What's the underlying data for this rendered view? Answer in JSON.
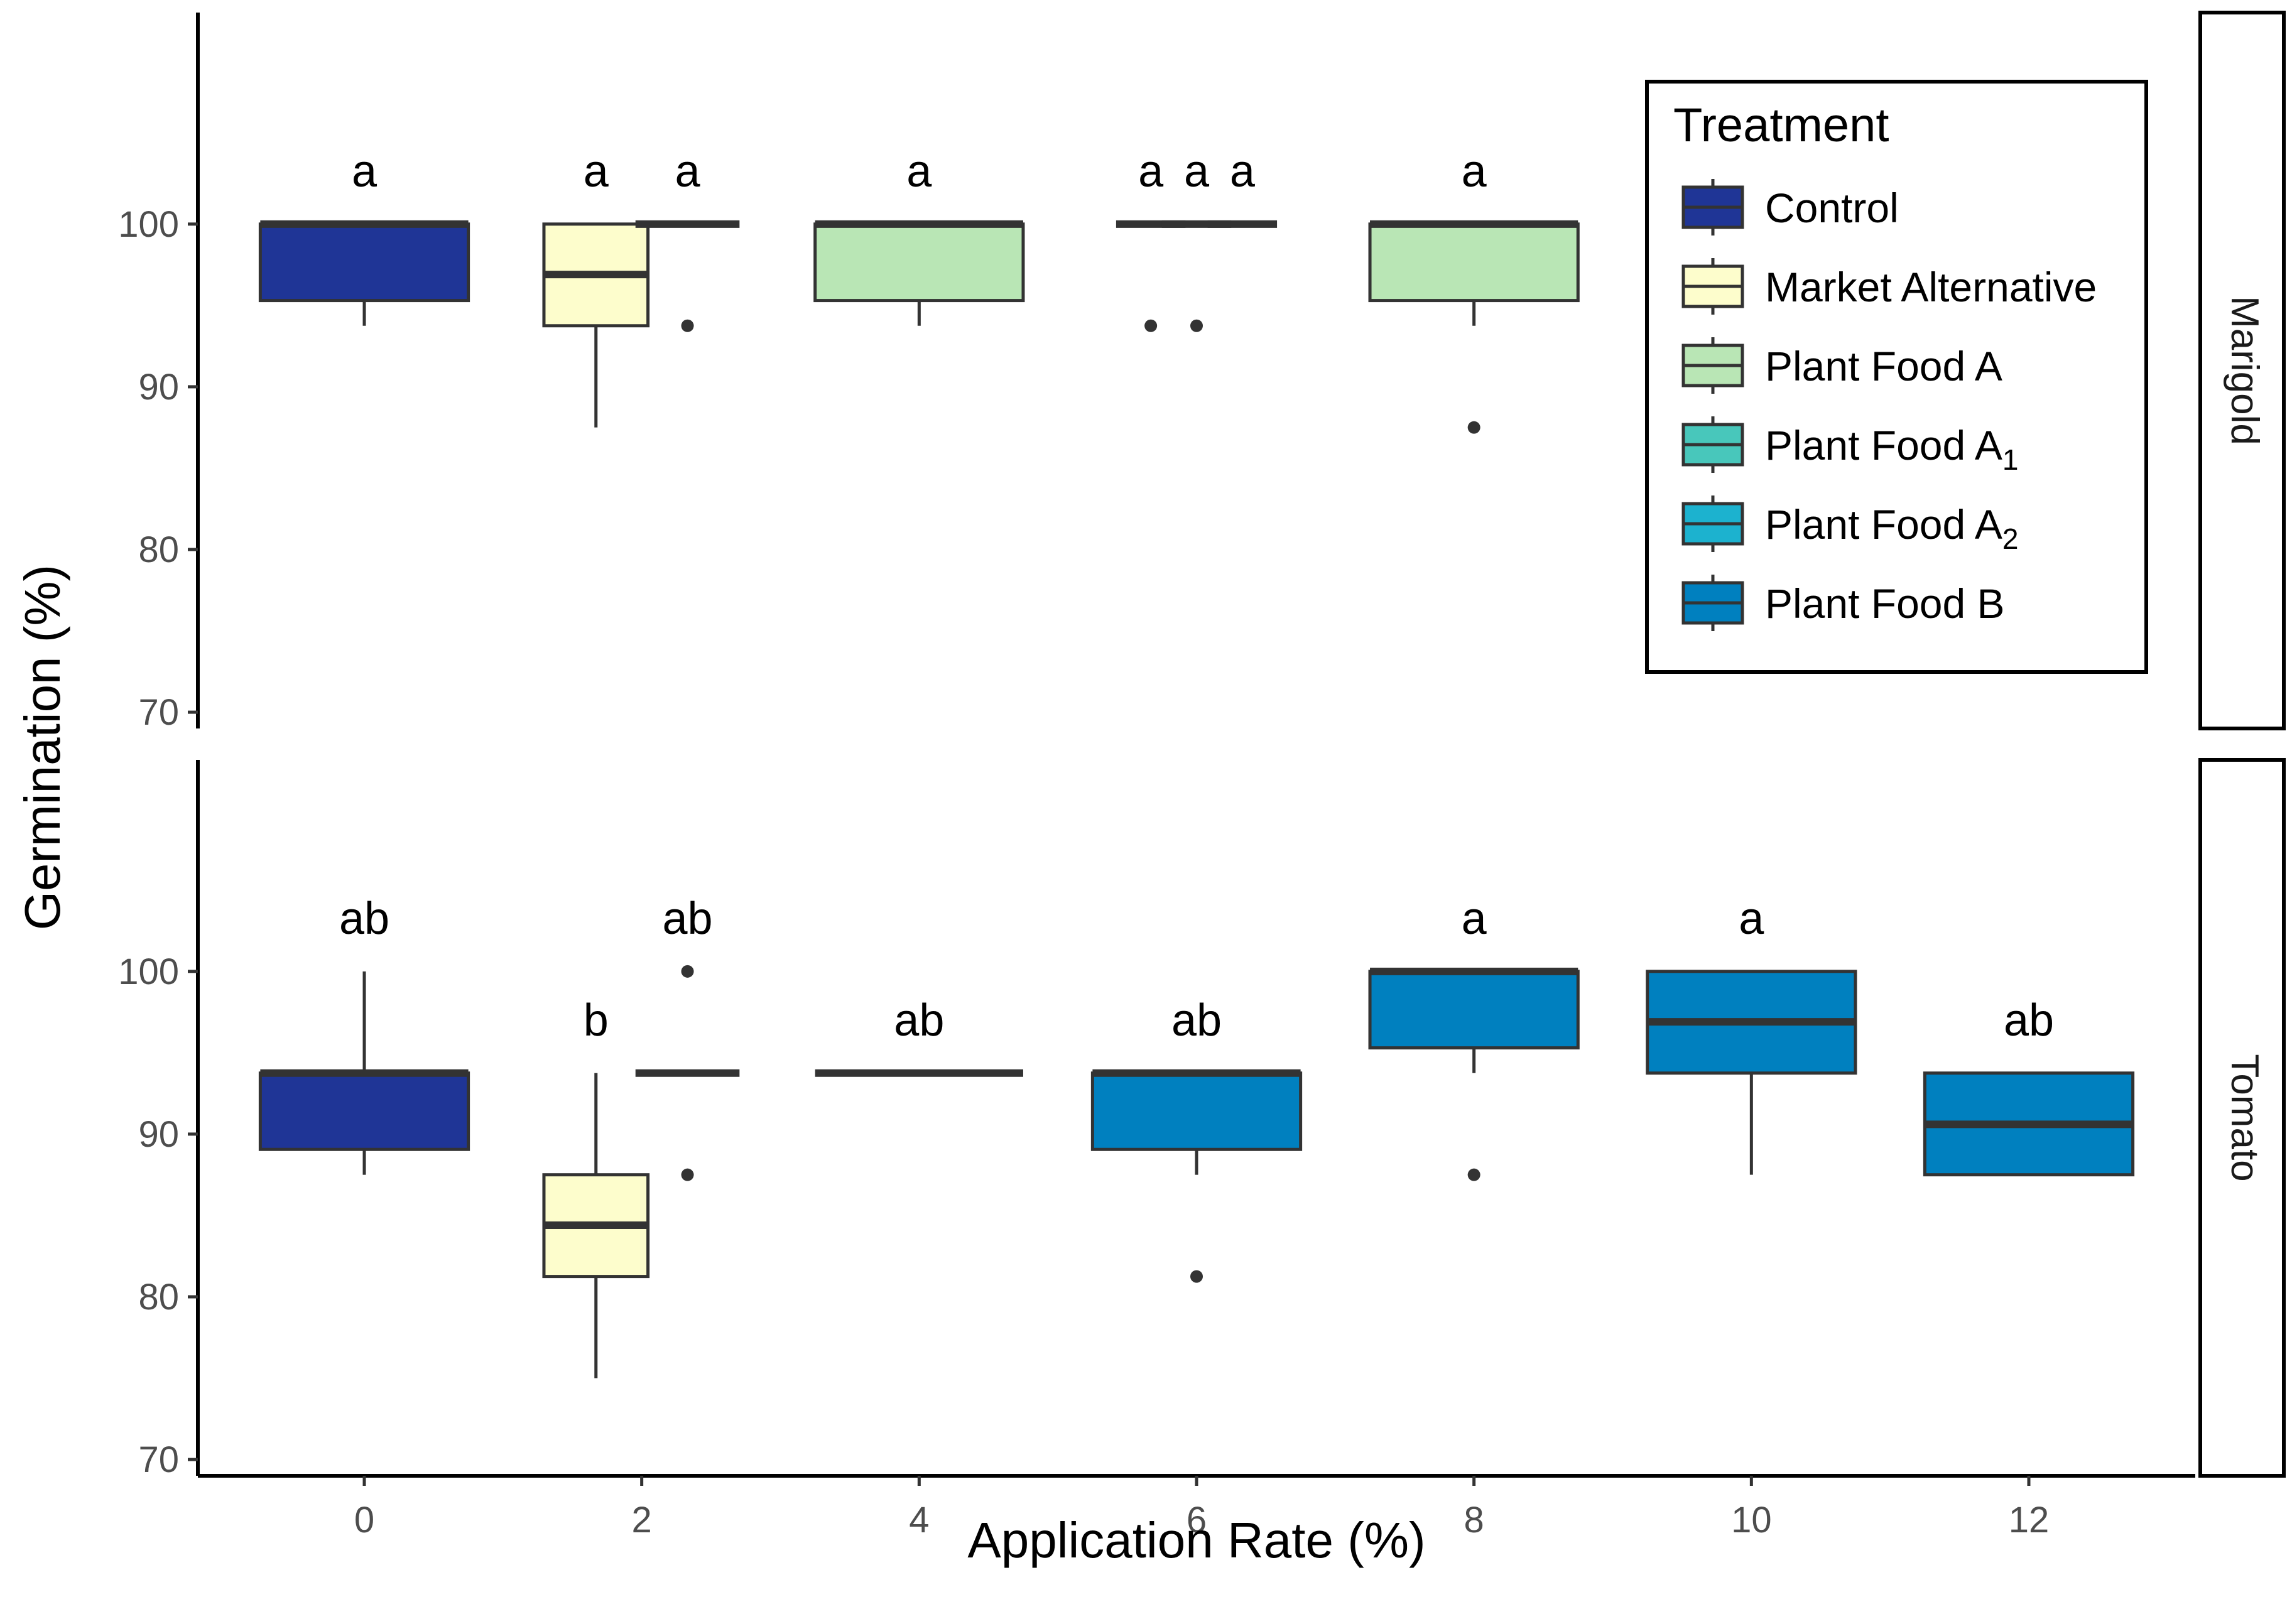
{
  "chart_data": {
    "type": "box",
    "xlabel": "Application Rate (%)",
    "ylabel": "Germination (%)",
    "x_ticks": [
      "0",
      "2",
      "4",
      "6",
      "8",
      "10",
      "12"
    ],
    "y_ticks": [
      "70",
      "80",
      "90",
      "100"
    ],
    "xlim": [
      -1.2,
      13.2
    ],
    "ylim": [
      69,
      113
    ],
    "legend": {
      "title": "Treatment",
      "position": "top-right",
      "entries": [
        {
          "label": "Control",
          "sub": "",
          "color": "#1f3596"
        },
        {
          "label": "Market Alternative",
          "sub": "",
          "color": "#fdfdcc"
        },
        {
          "label": "Plant Food A",
          "sub": "",
          "color": "#b9e6b5"
        },
        {
          "label": "Plant Food A",
          "sub": "1",
          "color": "#48c7bb"
        },
        {
          "label": "Plant Food A",
          "sub": "2",
          "color": "#1cb2cf"
        },
        {
          "label": "Plant Food B",
          "sub": "",
          "color": "#0080bf"
        }
      ]
    },
    "panels": [
      {
        "name": "Marigold",
        "boxes": [
          {
            "x": 0,
            "width": 1.5,
            "color": "#1f3596",
            "q1": 95.3,
            "median": 100,
            "q3": 100,
            "whisker_low": 93.75,
            "whisker_high": 100,
            "outliers": [],
            "letter": "a"
          },
          {
            "x": 1.67,
            "width": 0.75,
            "color": "#fdfdcc",
            "q1": 93.75,
            "median": 96.9,
            "q3": 100,
            "whisker_low": 87.5,
            "whisker_high": 100,
            "outliers": [],
            "letter": "a"
          },
          {
            "x": 2.33,
            "width": 0.75,
            "color": "#b9e6b5",
            "q1": 100,
            "median": 100,
            "q3": 100,
            "whisker_low": 100,
            "whisker_high": 100,
            "outliers": [
              93.75
            ],
            "letter": "a"
          },
          {
            "x": 4,
            "width": 1.5,
            "color": "#b9e6b5",
            "q1": 95.3,
            "median": 100,
            "q3": 100,
            "whisker_low": 93.75,
            "whisker_high": 100,
            "outliers": [],
            "letter": "a"
          },
          {
            "x": 5.67,
            "width": 0.5,
            "color": "#b9e6b5",
            "q1": 100,
            "median": 100,
            "q3": 100,
            "whisker_low": 100,
            "whisker_high": 100,
            "outliers": [
              93.75
            ],
            "letter": "a"
          },
          {
            "x": 6,
            "width": 0.5,
            "color": "#48c7bb",
            "q1": 100,
            "median": 100,
            "q3": 100,
            "whisker_low": 100,
            "whisker_high": 100,
            "outliers": [
              93.75
            ],
            "letter": "a"
          },
          {
            "x": 6.33,
            "width": 0.5,
            "color": "#1cb2cf",
            "q1": 100,
            "median": 100,
            "q3": 100,
            "whisker_low": 100,
            "whisker_high": 100,
            "outliers": [],
            "letter": "a"
          },
          {
            "x": 8,
            "width": 1.5,
            "color": "#b9e6b5",
            "q1": 95.3,
            "median": 100,
            "q3": 100,
            "whisker_low": 93.75,
            "whisker_high": 100,
            "outliers": [
              87.5
            ],
            "letter": "a"
          }
        ]
      },
      {
        "name": "Tomato",
        "boxes": [
          {
            "x": 0,
            "width": 1.5,
            "color": "#1f3596",
            "q1": 89.06,
            "median": 93.75,
            "q3": 93.75,
            "whisker_low": 87.5,
            "whisker_high": 100,
            "outliers": [],
            "letter": "ab"
          },
          {
            "x": 1.67,
            "width": 0.75,
            "color": "#fdfdcc",
            "q1": 81.25,
            "median": 84.4,
            "q3": 87.5,
            "whisker_low": 75,
            "whisker_high": 93.75,
            "outliers": [],
            "letter": "b"
          },
          {
            "x": 2.33,
            "width": 0.75,
            "color": "#b9e6b5",
            "q1": 93.75,
            "median": 93.75,
            "q3": 93.75,
            "whisker_low": 93.75,
            "whisker_high": 93.75,
            "outliers": [
              100,
              87.5
            ],
            "letter": "ab"
          },
          {
            "x": 4,
            "width": 1.5,
            "color": "#0080bf",
            "q1": 93.75,
            "median": 93.75,
            "q3": 93.75,
            "whisker_low": 93.75,
            "whisker_high": 93.75,
            "outliers": [],
            "letter": "ab"
          },
          {
            "x": 6,
            "width": 1.5,
            "color": "#0080bf",
            "q1": 89.06,
            "median": 93.75,
            "q3": 93.75,
            "whisker_low": 87.5,
            "whisker_high": 93.75,
            "outliers": [
              81.25
            ],
            "letter": "ab"
          },
          {
            "x": 8,
            "width": 1.5,
            "color": "#0080bf",
            "q1": 95.3,
            "median": 100,
            "q3": 100,
            "whisker_low": 93.75,
            "whisker_high": 100,
            "outliers": [
              87.5
            ],
            "letter": "a"
          },
          {
            "x": 10,
            "width": 1.5,
            "color": "#0080bf",
            "q1": 93.75,
            "median": 96.9,
            "q3": 100,
            "whisker_low": 87.5,
            "whisker_high": 100,
            "outliers": [],
            "letter": "a"
          },
          {
            "x": 12,
            "width": 1.5,
            "color": "#0080bf",
            "q1": 87.5,
            "median": 90.6,
            "q3": 93.75,
            "whisker_low": 87.5,
            "whisker_high": 93.75,
            "outliers": [],
            "letter": "ab"
          }
        ]
      }
    ]
  }
}
